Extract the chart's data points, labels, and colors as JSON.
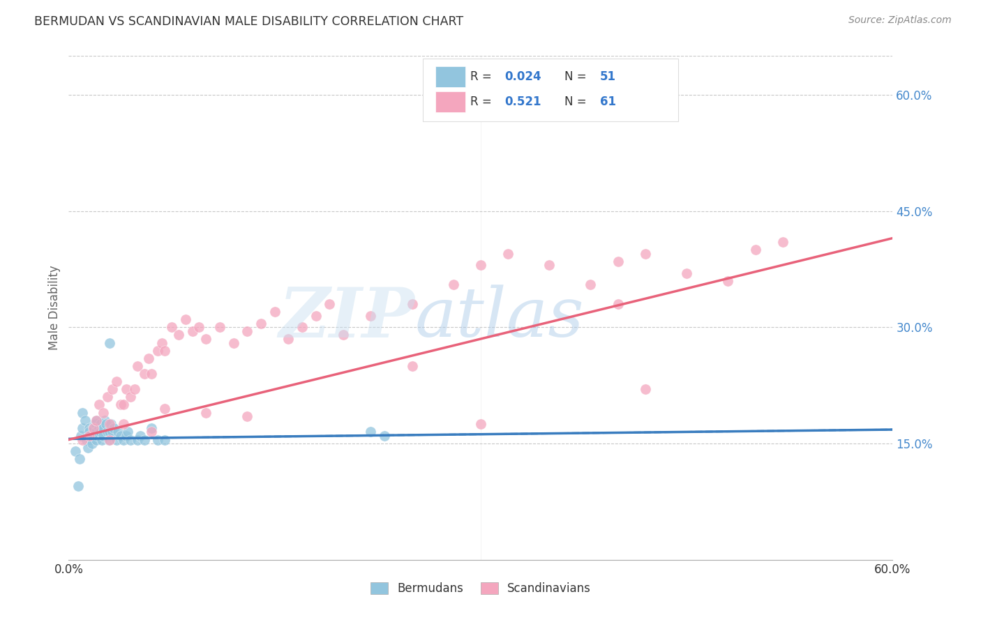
{
  "title": "BERMUDAN VS SCANDINAVIAN MALE DISABILITY CORRELATION CHART",
  "source": "Source: ZipAtlas.com",
  "ylabel": "Male Disability",
  "xlim": [
    0.0,
    0.6
  ],
  "ylim": [
    0.0,
    0.65
  ],
  "yticks": [
    0.15,
    0.3,
    0.45,
    0.6
  ],
  "ytick_labels": [
    "15.0%",
    "30.0%",
    "45.0%",
    "60.0%"
  ],
  "xticks": [
    0.0,
    0.1,
    0.2,
    0.3,
    0.4,
    0.5,
    0.6
  ],
  "color_blue": "#92c5de",
  "color_pink": "#f4a6be",
  "color_blue_line": "#3a7dbf",
  "color_pink_line": "#e8627a",
  "background_color": "#ffffff",
  "grid_color": "#c8c8c8",
  "blue_scatter_x": [
    0.005,
    0.007,
    0.008,
    0.009,
    0.01,
    0.01,
    0.012,
    0.013,
    0.014,
    0.015,
    0.015,
    0.016,
    0.017,
    0.018,
    0.018,
    0.019,
    0.02,
    0.02,
    0.02,
    0.02,
    0.021,
    0.022,
    0.023,
    0.023,
    0.024,
    0.025,
    0.025,
    0.026,
    0.027,
    0.028,
    0.029,
    0.03,
    0.031,
    0.032,
    0.033,
    0.035,
    0.036,
    0.038,
    0.04,
    0.042,
    0.043,
    0.045,
    0.05,
    0.052,
    0.055,
    0.06,
    0.065,
    0.07,
    0.22,
    0.23,
    0.03
  ],
  "blue_scatter_y": [
    0.14,
    0.095,
    0.13,
    0.16,
    0.17,
    0.19,
    0.18,
    0.155,
    0.145,
    0.17,
    0.165,
    0.155,
    0.15,
    0.16,
    0.17,
    0.175,
    0.175,
    0.18,
    0.165,
    0.155,
    0.16,
    0.17,
    0.175,
    0.165,
    0.155,
    0.17,
    0.16,
    0.18,
    0.175,
    0.165,
    0.155,
    0.165,
    0.175,
    0.165,
    0.17,
    0.155,
    0.165,
    0.16,
    0.155,
    0.16,
    0.165,
    0.155,
    0.155,
    0.16,
    0.155,
    0.17,
    0.155,
    0.155,
    0.165,
    0.16,
    0.28
  ],
  "pink_scatter_x": [
    0.01,
    0.015,
    0.018,
    0.02,
    0.022,
    0.025,
    0.028,
    0.03,
    0.032,
    0.035,
    0.038,
    0.04,
    0.042,
    0.045,
    0.048,
    0.05,
    0.055,
    0.058,
    0.06,
    0.065,
    0.068,
    0.07,
    0.075,
    0.08,
    0.085,
    0.09,
    0.095,
    0.1,
    0.11,
    0.12,
    0.13,
    0.14,
    0.15,
    0.16,
    0.17,
    0.18,
    0.19,
    0.2,
    0.22,
    0.25,
    0.28,
    0.3,
    0.32,
    0.35,
    0.38,
    0.4,
    0.42,
    0.45,
    0.48,
    0.5,
    0.52,
    0.03,
    0.04,
    0.06,
    0.07,
    0.1,
    0.13,
    0.25,
    0.3,
    0.4,
    0.42
  ],
  "pink_scatter_y": [
    0.155,
    0.16,
    0.17,
    0.18,
    0.2,
    0.19,
    0.21,
    0.175,
    0.22,
    0.23,
    0.2,
    0.2,
    0.22,
    0.21,
    0.22,
    0.25,
    0.24,
    0.26,
    0.24,
    0.27,
    0.28,
    0.27,
    0.3,
    0.29,
    0.31,
    0.295,
    0.3,
    0.285,
    0.3,
    0.28,
    0.295,
    0.305,
    0.32,
    0.285,
    0.3,
    0.315,
    0.33,
    0.29,
    0.315,
    0.33,
    0.355,
    0.38,
    0.395,
    0.38,
    0.355,
    0.385,
    0.395,
    0.37,
    0.36,
    0.4,
    0.41,
    0.155,
    0.175,
    0.165,
    0.195,
    0.19,
    0.185,
    0.25,
    0.175,
    0.33,
    0.22
  ],
  "blue_line_x0": 0.0,
  "blue_line_x1": 0.6,
  "blue_line_y0": 0.156,
  "blue_line_y1": 0.168,
  "pink_line_x0": 0.0,
  "pink_line_x1": 0.6,
  "pink_line_y0": 0.155,
  "pink_line_y1": 0.415
}
